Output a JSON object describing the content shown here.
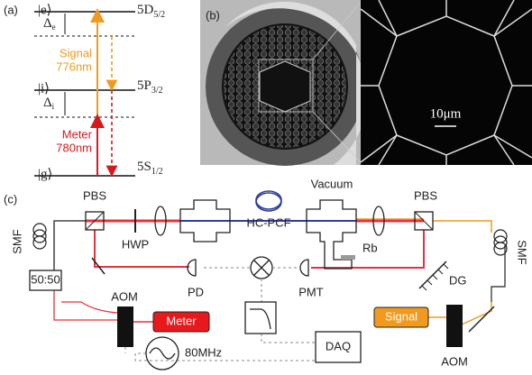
{
  "panel_a": {
    "label": "(a)",
    "levels": [
      {
        "state": "|e⟩",
        "term": "5D",
        "sub": "5/2"
      },
      {
        "state": "|i⟩",
        "term": "5P",
        "sub": "3/2"
      },
      {
        "state": "|g⟩",
        "term": "5S",
        "sub": "1/2"
      }
    ],
    "detunings": [
      {
        "symbol": "Δ",
        "sub": "e"
      },
      {
        "symbol": "Δ",
        "sub": "i"
      }
    ],
    "signal": {
      "name": "Signal",
      "wavelength": "776nm"
    },
    "meter": {
      "name": "Meter",
      "wavelength": "780nm"
    }
  },
  "panel_b": {
    "label": "(b)",
    "scale_bar": "10μm"
  },
  "panel_c": {
    "label": "(c)",
    "pbs_left": "PBS",
    "hwp": "HWP",
    "fiber": "HC-PCF",
    "vacuum": "Vacuum",
    "pbs_right": "PBS",
    "rb": "Rb",
    "smf_left": "SMF",
    "smf_right": "SMF",
    "splitter": "50:50",
    "pd": "PD",
    "pmt": "PMT",
    "dg": "DG",
    "aom_left": "AOM",
    "meter": "Meter",
    "rf": "80MHz",
    "daq": "DAQ",
    "signal": "Signal",
    "aom_right": "AOM"
  }
}
